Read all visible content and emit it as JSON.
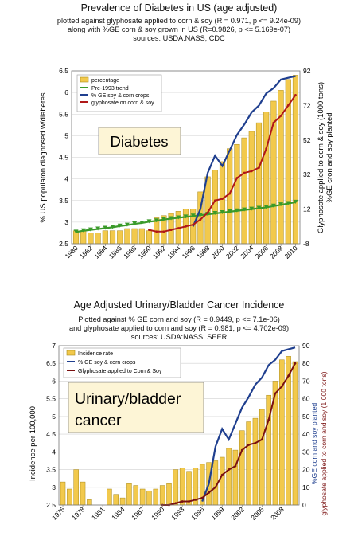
{
  "colors": {
    "bar": "#f2c94c",
    "bar_edge": "#a88a1a",
    "ge": "#1f3f8f",
    "glyph": "#b01818",
    "trend": "#3a9a2a",
    "callout_bg": "#fdf5d6",
    "callout_edge": "#888888"
  },
  "chart_data": [
    {
      "type": "bar",
      "title": "Prevalence of Diabetes in US (age adjusted)",
      "subtitle": [
        "plotted against glyphosate applied to corn & soy (R = 0.971, p <= 9.24e-09)",
        "along with %GE corn & soy grown in US (R=0.9826, p <= 5.169e-07)",
        "sources: USDA:NASS; CDC"
      ],
      "callout": "Diabetes",
      "ylabel": "% US populaton diagnosed w/diabetes",
      "y2label": [
        "Glyphosate applied to corn & soy (1000 tons)",
        "%GE cron and soy planted"
      ],
      "ylim": [
        2.5,
        6.5
      ],
      "y2lim": [
        -8,
        92
      ],
      "yticks": [
        "2.5",
        "3",
        "3.5",
        "4",
        "4.5",
        "5",
        "5.5",
        "6",
        "6.5"
      ],
      "y2ticks": [
        "-8",
        "12",
        "32",
        "52",
        "72",
        "92"
      ],
      "xticks": [
        "1980",
        "1982",
        "1984",
        "1986",
        "1988",
        "1990",
        "1992",
        "1994",
        "1996",
        "1998",
        "2000",
        "2002",
        "2004",
        "2006",
        "2008",
        "2010"
      ],
      "xlim": [
        1979.4,
        2010.6
      ],
      "legend": [
        "percentage",
        "Pre-1993 trend",
        "% GE soy & corn crops",
        "glyphosate on corn & soy"
      ],
      "years": [
        1980,
        1981,
        1982,
        1983,
        1984,
        1985,
        1986,
        1987,
        1988,
        1989,
        1990,
        1991,
        1992,
        1993,
        1994,
        1995,
        1996,
        1997,
        1998,
        1999,
        2000,
        2001,
        2002,
        2003,
        2004,
        2005,
        2006,
        2007,
        2008,
        2009,
        2010
      ],
      "values": [
        2.8,
        2.8,
        2.75,
        2.75,
        2.8,
        2.8,
        2.8,
        2.85,
        2.85,
        2.85,
        2.8,
        3.1,
        3.15,
        3.2,
        3.25,
        3.3,
        3.3,
        3.7,
        4.05,
        4.2,
        4.4,
        4.7,
        4.8,
        4.95,
        5.1,
        5.3,
        5.55,
        5.8,
        6.05,
        6.3,
        6.4
      ],
      "trend": {
        "years": [
          1980,
          1981,
          1982,
          1983,
          1984,
          1985,
          1986,
          1987,
          1988,
          1989,
          1990,
          1991,
          1992,
          1993,
          1994,
          1995,
          1996,
          1997,
          1998,
          1999,
          2000,
          2001,
          2002,
          2003,
          2004,
          2005,
          2006,
          2007,
          2008,
          2009,
          2010
        ],
        "values": [
          2.77,
          2.8,
          2.82,
          2.84,
          2.86,
          2.88,
          2.91,
          2.93,
          2.96,
          2.98,
          3.01,
          3.03,
          3.06,
          3.08,
          3.1,
          3.12,
          3.14,
          3.16,
          3.18,
          3.2,
          3.22,
          3.24,
          3.26,
          3.28,
          3.3,
          3.32,
          3.34,
          3.37,
          3.4,
          3.43,
          3.46
        ]
      },
      "ge": {
        "years": [
          1996,
          1997,
          1998,
          1999,
          2000,
          2001,
          2002,
          2003,
          2004,
          2005,
          2006,
          2007,
          2008,
          2009,
          2010
        ],
        "values": [
          2,
          12,
          33,
          43,
          37,
          46,
          55,
          61,
          68,
          72,
          79,
          82,
          87,
          88,
          89
        ]
      },
      "glyphosate": {
        "years": [
          1990,
          1991,
          1992,
          1993,
          1994,
          1995,
          1996,
          1997,
          1998,
          1999,
          2000,
          2001,
          2002,
          2003,
          2004,
          2005,
          2006,
          2007,
          2008,
          2009,
          2010
        ],
        "values": [
          0,
          -1,
          -1,
          0,
          1,
          2,
          3,
          6,
          10,
          17,
          18,
          21,
          30,
          33,
          34,
          36,
          47,
          62,
          66,
          72,
          78
        ]
      }
    },
    {
      "type": "bar",
      "title": "Age Adjusted Urinary/Bladder Cancer Incidence",
      "subtitle": [
        "Plotted against % GE corn and soy (R = 0.9449, p <= 7.1e-06)",
        "and glyphosate applied to corn and soy (R = 0.981, p <= 4.702e-09)",
        "sources: USDA:NASS; SEER"
      ],
      "callout": [
        "Urinary/bladder",
        "cancer"
      ],
      "ylabel": "Incidence per 100,000",
      "y2label": [
        "%GE corn and soy planted",
        "glyphosate applied to corn and soy (1,000 tons)"
      ],
      "ylim": [
        2.5,
        7
      ],
      "y2lim": [
        0,
        90
      ],
      "yticks": [
        "2.5",
        "3",
        "3.5",
        "4",
        "4.5",
        "5",
        "5.5",
        "6",
        "6.5",
        "7"
      ],
      "y2ticks": [
        "0",
        "10",
        "20",
        "30",
        "40",
        "50",
        "60",
        "70",
        "80",
        "90"
      ],
      "xticks": [
        "1975",
        "1978",
        "1981",
        "1984",
        "1987",
        "1990",
        "1993",
        "1996",
        "1999",
        "2002",
        "2005",
        "2008"
      ],
      "xlim": [
        1974.4,
        2010.6
      ],
      "legend": [
        "Incidence rate",
        "% GE soy & corn crops",
        "Glyphosate applied to Corn & Soy"
      ],
      "years": [
        1975,
        1976,
        1977,
        1978,
        1979,
        1980,
        1981,
        1982,
        1983,
        1984,
        1985,
        1986,
        1987,
        1988,
        1989,
        1990,
        1991,
        1992,
        1993,
        1994,
        1995,
        1996,
        1997,
        1998,
        1999,
        2000,
        2001,
        2002,
        2003,
        2004,
        2005,
        2006,
        2007,
        2008,
        2009,
        2010
      ],
      "values": [
        3.15,
        2.95,
        3.5,
        3.15,
        2.65,
        2.4,
        2.3,
        2.95,
        2.8,
        2.7,
        3.1,
        3.05,
        2.95,
        2.9,
        2.95,
        3.05,
        3.1,
        3.5,
        3.55,
        3.45,
        3.55,
        3.65,
        3.7,
        3.75,
        3.85,
        4.1,
        4.05,
        4.6,
        4.85,
        4.95,
        5.2,
        5.6,
        6.0,
        6.6,
        6.7,
        6.55
      ],
      "ge": {
        "years": [
          1996,
          1997,
          1998,
          1999,
          2000,
          2001,
          2002,
          2003,
          2004,
          2005,
          2006,
          2007,
          2008,
          2009,
          2010
        ],
        "values": [
          2,
          12,
          33,
          43,
          37,
          46,
          55,
          61,
          68,
          72,
          79,
          82,
          87,
          88,
          89
        ]
      },
      "glyphosate": {
        "years": [
          1990,
          1991,
          1992,
          1993,
          1994,
          1995,
          1996,
          1997,
          1998,
          1999,
          2000,
          2001,
          2002,
          2003,
          2004,
          2005,
          2006,
          2007,
          2008,
          2009,
          2010
        ],
        "values": [
          0,
          0,
          1,
          2,
          2,
          3,
          4,
          7,
          10,
          17,
          20,
          22,
          31,
          34,
          35,
          37,
          48,
          63,
          67,
          73,
          80
        ]
      }
    }
  ]
}
